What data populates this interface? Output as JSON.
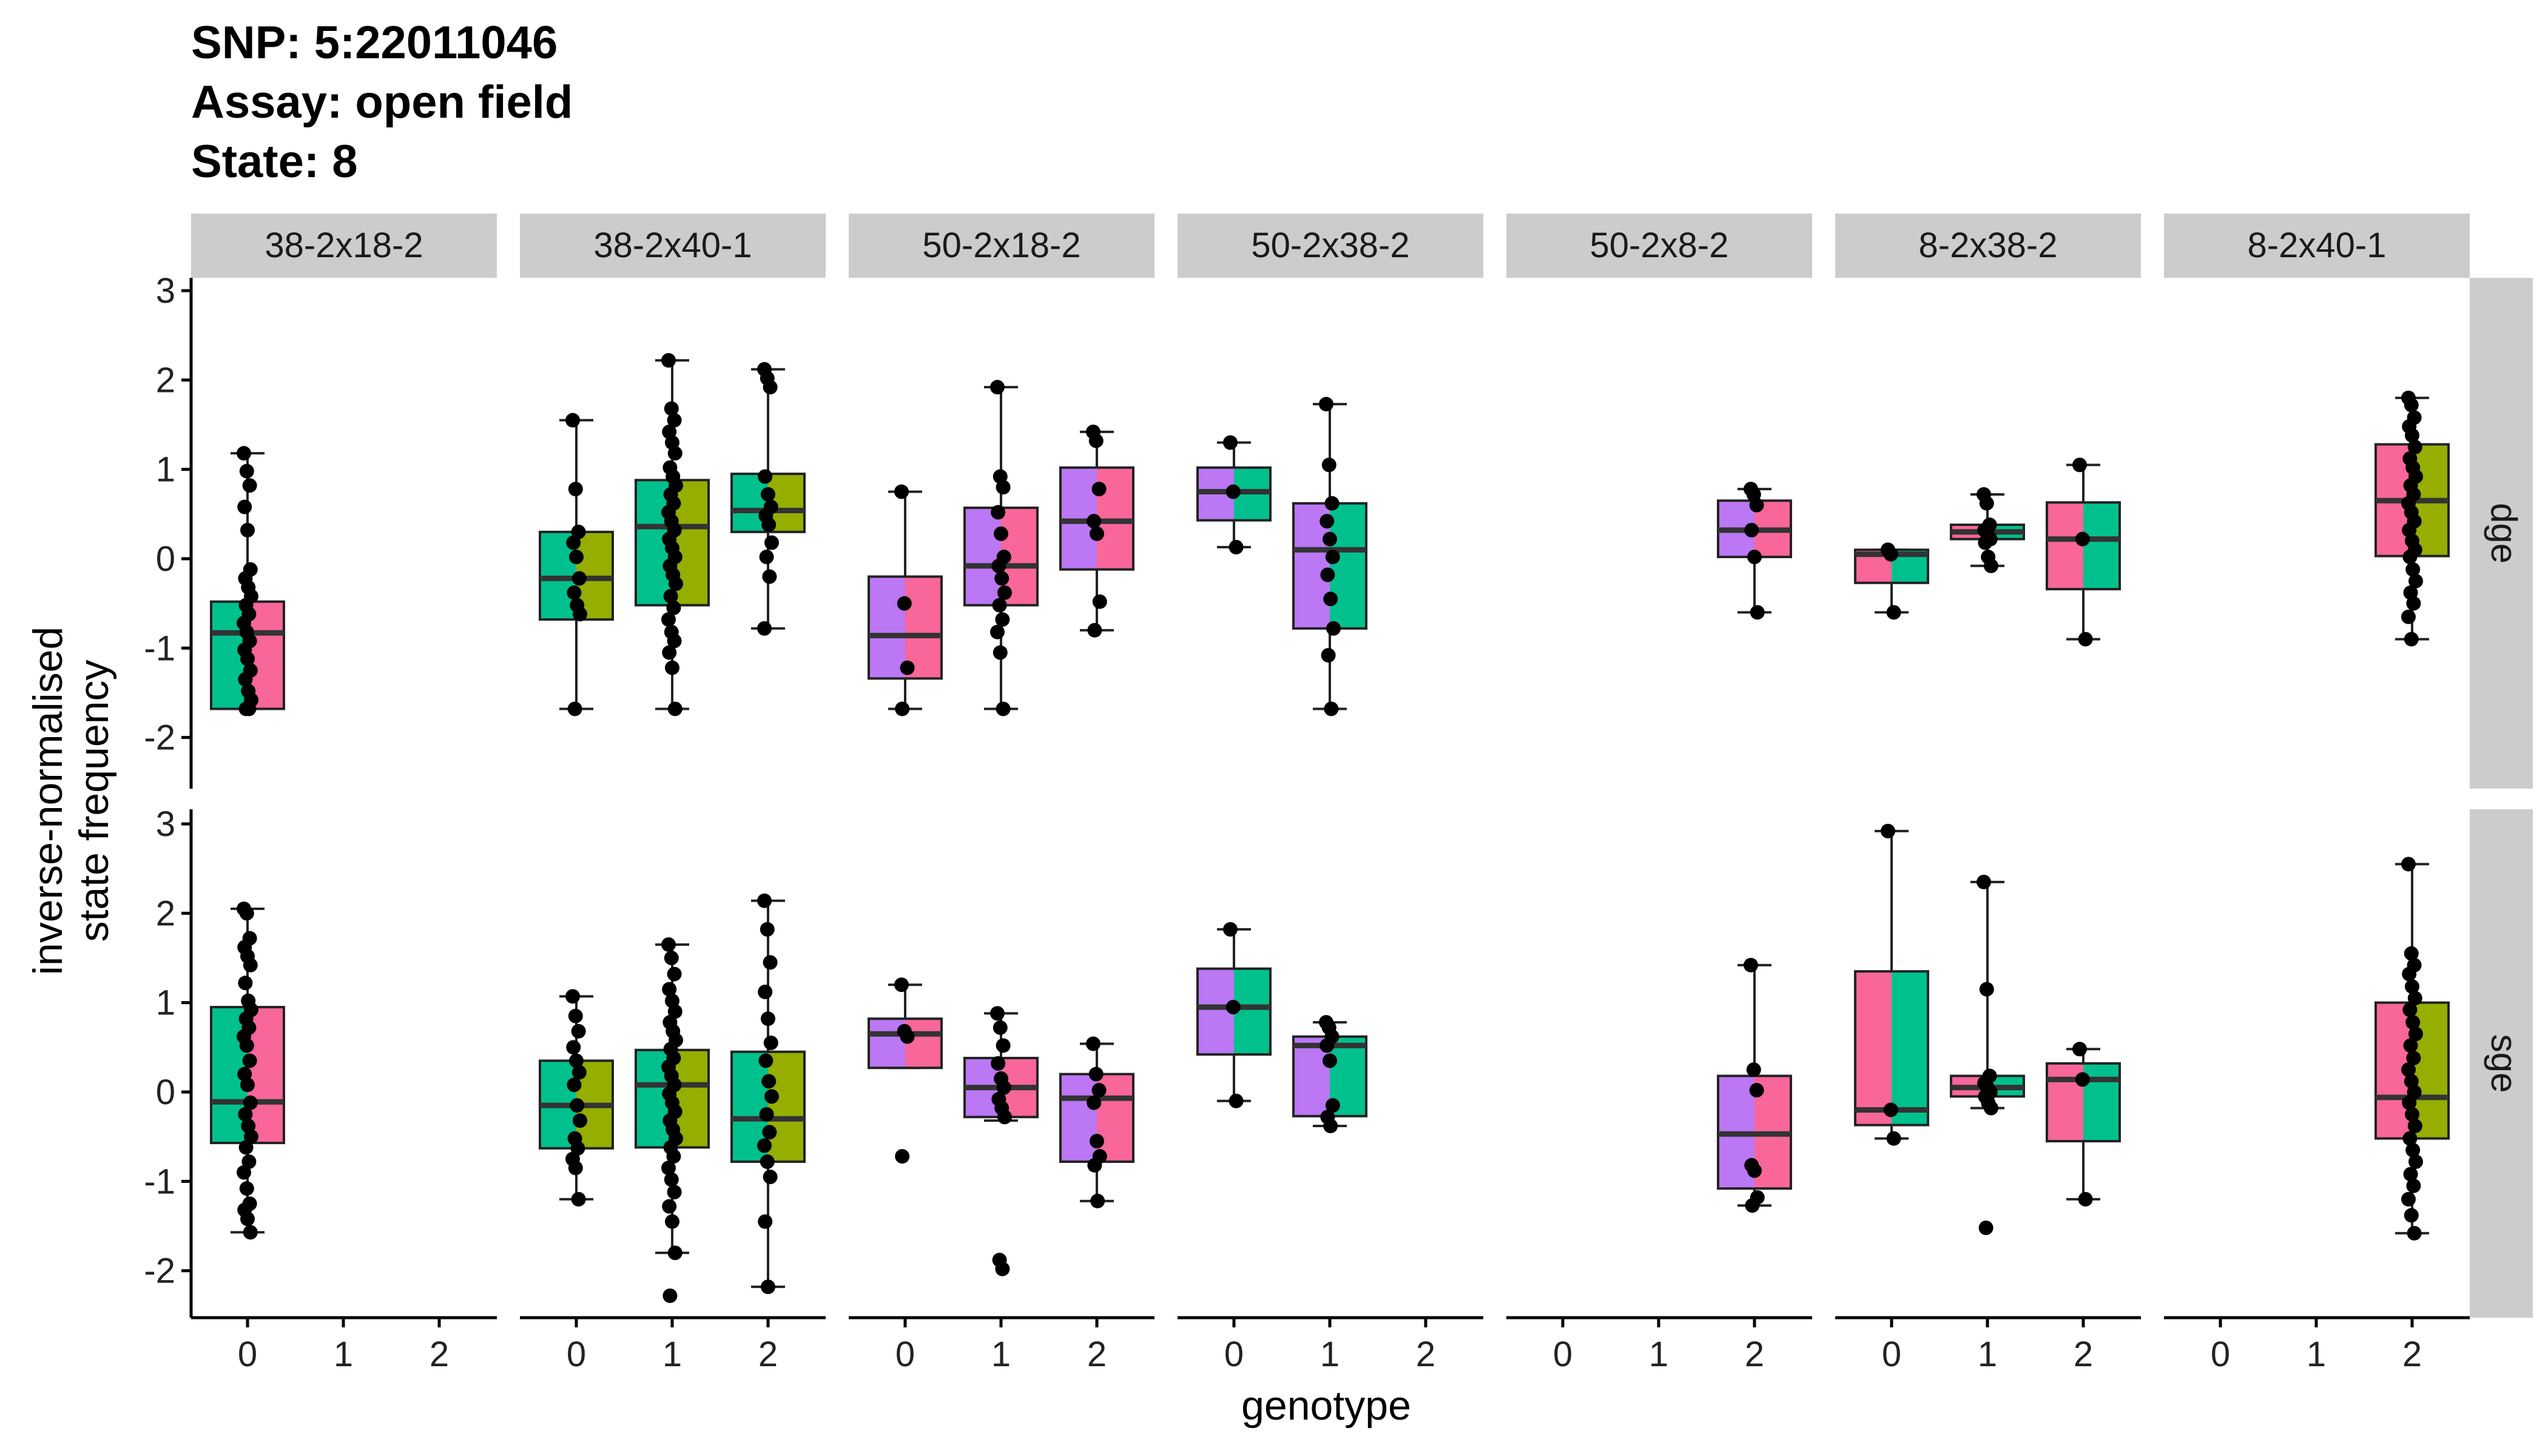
{
  "title": [
    "SNP: 5:22011046",
    "Assay: open field",
    "State: 8"
  ],
  "colors": {
    "0": "#F8766D",
    "1": "#A3A500",
    "2": "#00BF7D",
    "pink": "#F8669A",
    "purple": "#BB77F4",
    "green": "#00C18D",
    "olive": "#95AE00",
    "strip_fill": "#CCCCCC",
    "median": "#333333",
    "points": "#000000"
  },
  "chart_data": {
    "type": "box",
    "xlabel": "genotype",
    "ylabel": [
      "inverse-normalised",
      "state frequency"
    ],
    "ylim": [
      -2.35,
      3.2
    ],
    "y_ticks": [
      -2,
      -1,
      0,
      1,
      2,
      3
    ],
    "x_ticks": [
      "0",
      "1",
      "2"
    ],
    "facets_col": [
      "38-2x18-2",
      "38-2x40-1",
      "50-2x18-2",
      "50-2x38-2",
      "50-2x8-2",
      "8-2x38-2",
      "8-2x40-1"
    ],
    "facets_row": [
      "dge",
      "sge"
    ],
    "panels": [
      {
        "row": "dge",
        "col": "38-2x18-2",
        "boxes": [
          {
            "genotype": 0,
            "fill": [
              "green",
              "pink"
            ],
            "q1": -1.68,
            "median": -0.83,
            "q3": -0.48,
            "lo": -1.68,
            "hi": 1.18,
            "points": [
              1.18,
              0.98,
              0.82,
              0.58,
              0.32,
              -0.12,
              -0.22,
              -0.32,
              -0.42,
              -0.52,
              -0.62,
              -0.72,
              -0.82,
              -0.92,
              -1.02,
              -1.12,
              -1.25,
              -1.35,
              -1.48,
              -1.58,
              -1.68,
              -1.68
            ]
          }
        ]
      },
      {
        "row": "dge",
        "col": "38-2x40-1",
        "boxes": [
          {
            "genotype": 0,
            "fill": [
              "green",
              "olive"
            ],
            "q1": -0.68,
            "median": -0.22,
            "q3": 0.3,
            "lo": -1.68,
            "hi": 1.55,
            "points": [
              1.55,
              0.78,
              0.3,
              0.18,
              0.02,
              -0.22,
              -0.38,
              -0.52,
              -0.62,
              -1.68
            ]
          },
          {
            "genotype": 1,
            "fill": [
              "green",
              "olive"
            ],
            "q1": -0.52,
            "median": 0.36,
            "q3": 0.88,
            "lo": -1.68,
            "hi": 2.22,
            "points": [
              2.22,
              1.68,
              1.55,
              1.42,
              1.3,
              1.18,
              1.02,
              0.92,
              0.82,
              0.72,
              0.62,
              0.52,
              0.42,
              0.32,
              0.22,
              0.12,
              0.02,
              -0.08,
              -0.18,
              -0.28,
              -0.42,
              -0.55,
              -0.68,
              -0.82,
              -0.92,
              -1.05,
              -1.22,
              -1.68
            ]
          },
          {
            "genotype": 2,
            "fill": [
              "green",
              "olive"
            ],
            "q1": 0.3,
            "median": 0.54,
            "q3": 0.95,
            "lo": -0.78,
            "hi": 2.12,
            "points": [
              2.12,
              2.02,
              1.92,
              0.92,
              0.72,
              0.58,
              0.48,
              0.38,
              0.18,
              0.02,
              -0.2,
              -0.78
            ]
          }
        ]
      },
      {
        "row": "dge",
        "col": "50-2x18-2",
        "boxes": [
          {
            "genotype": 0,
            "fill": [
              "purple",
              "pink"
            ],
            "q1": -1.34,
            "median": -0.86,
            "q3": -0.2,
            "lo": -1.68,
            "hi": 0.75,
            "points": [
              0.75,
              -0.5,
              -1.22,
              -1.68
            ]
          },
          {
            "genotype": 1,
            "fill": [
              "purple",
              "pink"
            ],
            "q1": -0.52,
            "median": -0.08,
            "q3": 0.57,
            "lo": -1.68,
            "hi": 1.92,
            "points": [
              1.92,
              0.92,
              0.8,
              0.52,
              0.28,
              0.02,
              -0.08,
              -0.22,
              -0.38,
              -0.52,
              -0.68,
              -0.82,
              -1.05,
              -1.68
            ]
          },
          {
            "genotype": 2,
            "fill": [
              "purple",
              "pink"
            ],
            "q1": -0.12,
            "median": 0.42,
            "q3": 1.02,
            "lo": -0.8,
            "hi": 1.42,
            "points": [
              1.42,
              1.32,
              0.78,
              0.42,
              0.28,
              -0.48,
              -0.8
            ]
          }
        ]
      },
      {
        "row": "dge",
        "col": "50-2x38-2",
        "boxes": [
          {
            "genotype": 0,
            "fill": [
              "purple",
              "green"
            ],
            "q1": 0.43,
            "median": 0.75,
            "q3": 1.02,
            "lo": 0.13,
            "hi": 1.3,
            "points": [
              1.3,
              0.75,
              0.13
            ]
          },
          {
            "genotype": 1,
            "fill": [
              "purple",
              "green"
            ],
            "q1": -0.78,
            "median": 0.1,
            "q3": 0.62,
            "lo": -1.68,
            "hi": 1.73,
            "points": [
              1.73,
              1.05,
              0.62,
              0.42,
              0.22,
              0.02,
              -0.18,
              -0.45,
              -0.78,
              -1.08,
              -1.68
            ]
          }
        ]
      },
      {
        "row": "dge",
        "col": "50-2x8-2",
        "boxes": [
          {
            "genotype": 2,
            "fill": [
              "purple",
              "pink"
            ],
            "q1": 0.02,
            "median": 0.32,
            "q3": 0.65,
            "lo": -0.6,
            "hi": 0.78,
            "points": [
              0.78,
              0.72,
              0.6,
              0.32,
              0.02,
              -0.6
            ]
          }
        ]
      },
      {
        "row": "dge",
        "col": "8-2x38-2",
        "boxes": [
          {
            "genotype": 0,
            "fill": [
              "pink",
              "green"
            ],
            "q1": -0.27,
            "median": 0.05,
            "q3": 0.1,
            "lo": -0.6,
            "hi": 0.1,
            "points": [
              0.1,
              0.05,
              -0.6
            ]
          },
          {
            "genotype": 1,
            "fill": [
              "pink",
              "green"
            ],
            "q1": 0.22,
            "median": 0.3,
            "q3": 0.38,
            "lo": -0.08,
            "hi": 0.72,
            "points": [
              0.72,
              0.62,
              0.38,
              0.32,
              0.28,
              0.22,
              0.18,
              0.02,
              -0.08
            ]
          },
          {
            "genotype": 2,
            "fill": [
              "pink",
              "green"
            ],
            "q1": -0.34,
            "median": 0.22,
            "q3": 0.63,
            "lo": -0.9,
            "hi": 1.05,
            "points": [
              1.05,
              0.22,
              -0.9
            ]
          }
        ]
      },
      {
        "row": "dge",
        "col": "8-2x40-1",
        "boxes": [
          {
            "genotype": 2,
            "fill": [
              "pink",
              "olive"
            ],
            "q1": 0.03,
            "median": 0.65,
            "q3": 1.28,
            "lo": -0.9,
            "hi": 1.8,
            "points": [
              1.8,
              1.72,
              1.58,
              1.48,
              1.38,
              1.25,
              1.12,
              1.02,
              0.92,
              0.82,
              0.72,
              0.62,
              0.52,
              0.42,
              0.32,
              0.2,
              0.1,
              0.02,
              -0.12,
              -0.25,
              -0.38,
              -0.5,
              -0.65,
              -0.9
            ]
          }
        ]
      },
      {
        "row": "sge",
        "col": "38-2x18-2",
        "boxes": [
          {
            "genotype": 0,
            "fill": [
              "green",
              "pink"
            ],
            "q1": -0.57,
            "median": -0.11,
            "q3": 0.95,
            "lo": -1.57,
            "hi": 2.05,
            "points": [
              2.05,
              2.0,
              1.72,
              1.62,
              1.52,
              1.42,
              1.22,
              1.02,
              0.92,
              0.82,
              0.72,
              0.62,
              0.52,
              0.35,
              0.2,
              0.08,
              -0.12,
              -0.25,
              -0.38,
              -0.5,
              -0.62,
              -0.78,
              -0.9,
              -1.08,
              -1.25,
              -1.32,
              -1.42,
              -1.57
            ]
          }
        ]
      },
      {
        "row": "sge",
        "col": "38-2x40-1",
        "boxes": [
          {
            "genotype": 0,
            "fill": [
              "green",
              "olive"
            ],
            "q1": -0.63,
            "median": -0.15,
            "q3": 0.35,
            "lo": -1.2,
            "hi": 1.07,
            "points": [
              1.07,
              0.85,
              0.68,
              0.5,
              0.35,
              0.22,
              0.08,
              -0.15,
              -0.32,
              -0.52,
              -0.63,
              -0.75,
              -0.85,
              -1.2
            ]
          },
          {
            "genotype": 1,
            "fill": [
              "green",
              "olive"
            ],
            "q1": -0.62,
            "median": 0.08,
            "q3": 0.47,
            "lo": -1.8,
            "hi": 1.65,
            "points": [
              1.65,
              1.5,
              1.32,
              1.15,
              1.02,
              0.9,
              0.78,
              0.68,
              0.58,
              0.48,
              0.38,
              0.28,
              0.18,
              0.08,
              -0.02,
              -0.12,
              -0.22,
              -0.32,
              -0.42,
              -0.52,
              -0.62,
              -0.72,
              -0.85,
              -0.98,
              -1.12,
              -1.28,
              -1.45,
              -1.8,
              -2.28
            ]
          },
          {
            "genotype": 2,
            "fill": [
              "green",
              "olive"
            ],
            "q1": -0.78,
            "median": -0.3,
            "q3": 0.45,
            "lo": -2.18,
            "hi": 2.14,
            "points": [
              2.14,
              1.82,
              1.45,
              1.12,
              0.82,
              0.55,
              0.35,
              0.12,
              -0.05,
              -0.25,
              -0.45,
              -0.6,
              -0.78,
              -0.95,
              -1.45,
              -2.18
            ]
          }
        ]
      },
      {
        "row": "sge",
        "col": "50-2x18-2",
        "boxes": [
          {
            "genotype": 0,
            "fill": [
              "purple",
              "pink"
            ],
            "q1": 0.27,
            "median": 0.65,
            "q3": 0.82,
            "lo": 0.27,
            "hi": 1.2,
            "points": [
              1.2,
              0.68,
              0.62,
              -0.72
            ]
          },
          {
            "genotype": 1,
            "fill": [
              "purple",
              "pink"
            ],
            "q1": -0.28,
            "median": 0.05,
            "q3": 0.38,
            "lo": -0.32,
            "hi": 0.88,
            "points": [
              0.88,
              0.72,
              0.52,
              0.32,
              0.15,
              0.05,
              -0.08,
              -0.18,
              -0.28,
              -1.88,
              -1.98
            ]
          },
          {
            "genotype": 2,
            "fill": [
              "purple",
              "pink"
            ],
            "q1": -0.78,
            "median": -0.07,
            "q3": 0.2,
            "lo": -1.22,
            "hi": 0.54,
            "points": [
              0.54,
              0.2,
              0.02,
              -0.12,
              -0.55,
              -0.72,
              -0.82,
              -1.22
            ]
          }
        ]
      },
      {
        "row": "sge",
        "col": "50-2x38-2",
        "boxes": [
          {
            "genotype": 0,
            "fill": [
              "purple",
              "green"
            ],
            "q1": 0.42,
            "median": 0.95,
            "q3": 1.38,
            "lo": -0.1,
            "hi": 1.82,
            "points": [
              1.82,
              0.95,
              -0.1
            ]
          },
          {
            "genotype": 1,
            "fill": [
              "purple",
              "green"
            ],
            "q1": -0.27,
            "median": 0.52,
            "q3": 0.62,
            "lo": -0.38,
            "hi": 0.78,
            "points": [
              0.78,
              0.72,
              0.62,
              0.52,
              0.35,
              -0.15,
              -0.28,
              -0.38
            ]
          }
        ]
      },
      {
        "row": "sge",
        "col": "50-2x8-2",
        "boxes": [
          {
            "genotype": 2,
            "fill": [
              "purple",
              "pink"
            ],
            "q1": -1.08,
            "median": -0.47,
            "q3": 0.18,
            "lo": -1.27,
            "hi": 1.42,
            "points": [
              1.42,
              0.25,
              0.02,
              -0.82,
              -0.88,
              -1.18,
              -1.27
            ]
          }
        ]
      },
      {
        "row": "sge",
        "col": "8-2x38-2",
        "boxes": [
          {
            "genotype": 0,
            "fill": [
              "pink",
              "green"
            ],
            "q1": -0.37,
            "median": -0.2,
            "q3": 1.35,
            "lo": -0.52,
            "hi": 2.92,
            "points": [
              2.92,
              -0.2,
              -0.52
            ]
          },
          {
            "genotype": 1,
            "fill": [
              "pink",
              "green"
            ],
            "q1": -0.05,
            "median": 0.05,
            "q3": 0.18,
            "lo": -0.18,
            "hi": 2.35,
            "points": [
              2.35,
              1.15,
              0.18,
              0.1,
              0.05,
              0.0,
              -0.05,
              -0.12,
              -0.18,
              -1.52
            ]
          },
          {
            "genotype": 2,
            "fill": [
              "pink",
              "green"
            ],
            "q1": -0.55,
            "median": 0.14,
            "q3": 0.32,
            "lo": -1.2,
            "hi": 0.48,
            "points": [
              0.48,
              0.14,
              -1.2
            ]
          }
        ]
      },
      {
        "row": "sge",
        "col": "8-2x40-1",
        "boxes": [
          {
            "genotype": 2,
            "fill": [
              "pink",
              "olive"
            ],
            "q1": -0.52,
            "median": -0.06,
            "q3": 1.0,
            "lo": -1.58,
            "hi": 2.55,
            "points": [
              2.55,
              1.55,
              1.42,
              1.32,
              1.18,
              1.05,
              0.92,
              0.78,
              0.65,
              0.52,
              0.38,
              0.25,
              0.12,
              0.0,
              -0.12,
              -0.25,
              -0.38,
              -0.52,
              -0.65,
              -0.78,
              -0.92,
              -1.05,
              -1.2,
              -1.38,
              -1.58
            ]
          }
        ]
      }
    ]
  }
}
